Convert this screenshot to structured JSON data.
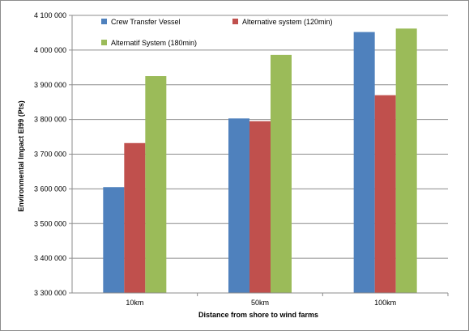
{
  "chart_data": {
    "type": "bar",
    "categories": [
      "10km",
      "50km",
      "100km"
    ],
    "series": [
      {
        "name": "Crew Transfer Vessel",
        "color": "#4f81bd",
        "values": [
          3605000,
          3803000,
          4052000
        ]
      },
      {
        "name": "Alternative system (120min)",
        "color": "#c0504d",
        "values": [
          3732000,
          3795000,
          3870000
        ]
      },
      {
        "name": "Alternatif System (180min)",
        "color": "#9bbb59",
        "values": [
          3925000,
          3986000,
          4062000
        ]
      }
    ],
    "ylim": [
      3300000,
      4100000
    ],
    "yticks": [
      3300000,
      3400000,
      3500000,
      3600000,
      3700000,
      3800000,
      3900000,
      4000000,
      4100000
    ],
    "ytick_labels": [
      "3 300 000",
      "3 400 000",
      "3 500 000",
      "3 600 000",
      "3 700 000",
      "3 800 000",
      "3 900 000",
      "4 000 000",
      "4 100 000"
    ],
    "xlabel": "Distance from shore to wind farms",
    "ylabel": "Environmental Impact EI99 (Pts)",
    "grid": true,
    "legend_position": "top-left"
  }
}
